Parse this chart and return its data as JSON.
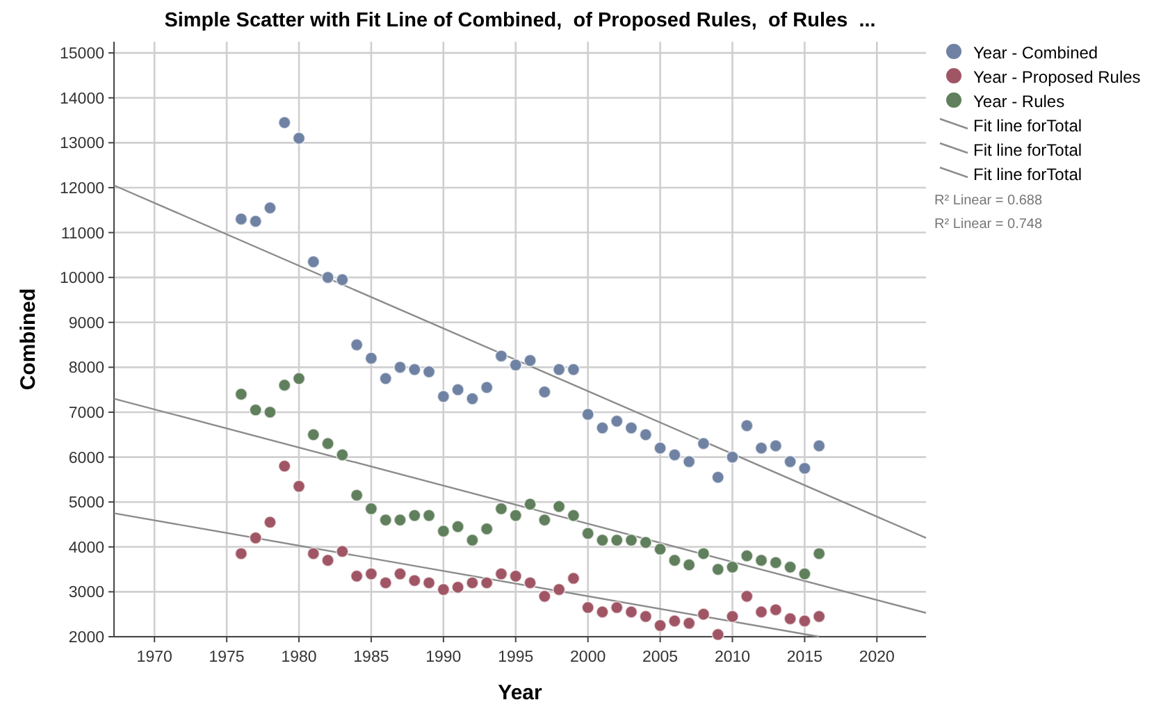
{
  "chart_data": {
    "type": "scatter",
    "title": "Simple Scatter with Fit Line of Combined,  of Proposed Rules,  of Rules  ...",
    "xlabel": "Year",
    "ylabel": "Combined",
    "x": [
      1976,
      1977,
      1978,
      1979,
      1980,
      1981,
      1982,
      1983,
      1984,
      1985,
      1986,
      1987,
      1988,
      1989,
      1990,
      1991,
      1992,
      1993,
      1994,
      1995,
      1996,
      1997,
      1998,
      1999,
      2000,
      2001,
      2002,
      2003,
      2004,
      2005,
      2006,
      2007,
      2008,
      2009,
      2010,
      2011,
      2012,
      2013,
      2014,
      2015,
      2016
    ],
    "series": [
      {
        "name": "Year - Combined",
        "color": "#6f82a3",
        "values": [
          11300,
          11250,
          11550,
          13450,
          13100,
          10350,
          10000,
          9950,
          8500,
          8200,
          7750,
          8000,
          7950,
          7900,
          7350,
          7500,
          7300,
          7550,
          8250,
          8050,
          8150,
          7450,
          7950,
          7950,
          6950,
          6650,
          6800,
          6650,
          6500,
          6200,
          6050,
          5900,
          6300,
          5550,
          6000,
          6700,
          6200,
          6250,
          5900,
          5750,
          6250
        ]
      },
      {
        "name": "Year - Proposed Rules",
        "color": "#a05565",
        "values": [
          3850,
          4200,
          4550,
          5800,
          5350,
          3850,
          3700,
          3900,
          3350,
          3400,
          3200,
          3400,
          3250,
          3200,
          3050,
          3100,
          3200,
          3200,
          3400,
          3350,
          3200,
          2900,
          3050,
          3300,
          2650,
          2550,
          2650,
          2550,
          2450,
          2250,
          2350,
          2300,
          2500,
          2050,
          2450,
          2900,
          2550,
          2600,
          2400,
          2350,
          2450
        ]
      },
      {
        "name": "Year - Rules",
        "color": "#607f5c",
        "values": [
          7400,
          7050,
          7000,
          7600,
          7750,
          6500,
          6300,
          6050,
          5150,
          4850,
          4600,
          4600,
          4700,
          4700,
          4350,
          4450,
          4150,
          4400,
          4850,
          4700,
          4950,
          4600,
          4900,
          4700,
          4300,
          4150,
          4150,
          4150,
          4100,
          3950,
          3700,
          3600,
          3850,
          3500,
          3550,
          3800,
          3700,
          3650,
          3550,
          3400,
          3850
        ]
      },
      {
        "name": "Fit line forTotal",
        "type": "line",
        "color": "#8c8c8c",
        "x": [
          1967.2,
          2023.4
        ],
        "values": [
          12050,
          4200
        ],
        "marker": "none"
      },
      {
        "name": "Fit line forTotal",
        "type": "line",
        "color": "#8c8c8c",
        "x": [
          1967.2,
          2023.4
        ],
        "values": [
          7300,
          2530
        ],
        "marker": "none"
      },
      {
        "name": "Fit line forTotal",
        "type": "line",
        "color": "#8c8c8c",
        "x": [
          1967.2,
          2016
        ],
        "values": [
          4750,
          2000
        ],
        "marker": "none"
      }
    ],
    "xlim": [
      1967.2,
      2023.4
    ],
    "xticks": [
      1970,
      1975,
      1980,
      1985,
      1990,
      1995,
      2000,
      2005,
      2010,
      2015,
      2020
    ],
    "ylim": [
      2000,
      15250
    ],
    "yticks": [
      2000,
      3000,
      4000,
      5000,
      6000,
      7000,
      8000,
      9000,
      10000,
      11000,
      12000,
      13000,
      14000,
      15000
    ],
    "grid": true,
    "legend": "top right",
    "marker": "circle",
    "line_style": "solid",
    "annotations": [
      "R² Linear = 0.688",
      "R² Linear = 0.748"
    ]
  }
}
